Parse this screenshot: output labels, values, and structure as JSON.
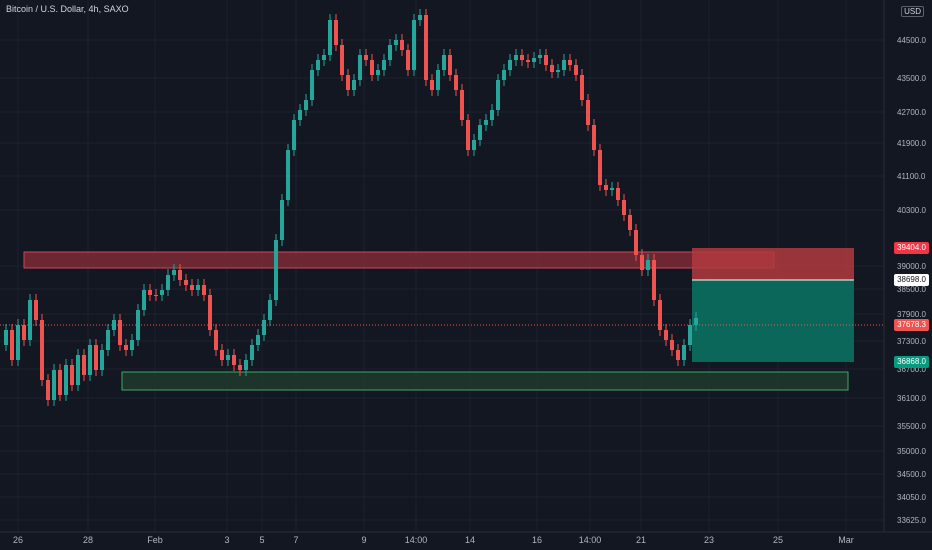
{
  "header": {
    "symbol": "Bitcoin / U.S. Dollar",
    "timeframe": "4h",
    "exchange": "SAXO"
  },
  "currency": "USD",
  "price_axis": {
    "labels": [
      "44500.0",
      "43500.0",
      "42700.0",
      "41900.0",
      "41100.0",
      "40300.0",
      "39000.0",
      "38500.0",
      "37900.0",
      "37300.0",
      "36700.0",
      "36100.0",
      "35500.0",
      "35000.0",
      "34500.0",
      "34050.0",
      "33625.0"
    ]
  },
  "time_axis": {
    "labels": [
      "26",
      "28",
      "Feb",
      "3",
      "5",
      "7",
      "9",
      "14:00",
      "14",
      "16",
      "14:00",
      "21",
      "23",
      "25",
      "Mar"
    ]
  },
  "price_tags": {
    "stop": "39404.0",
    "entry": "38698.0",
    "current": "37678.3",
    "target": "36868.0"
  },
  "colors": {
    "background": "#131722",
    "up": "#26a69a",
    "down": "#ef5350",
    "resistance_zone": "#7d2a35",
    "support_zone": "#1e3a2a",
    "stop_zone": "#b13a3f",
    "target_zone": "#0b6b5e"
  },
  "zones": {
    "resistance": "resistance-zone",
    "support": "support-zone"
  }
}
